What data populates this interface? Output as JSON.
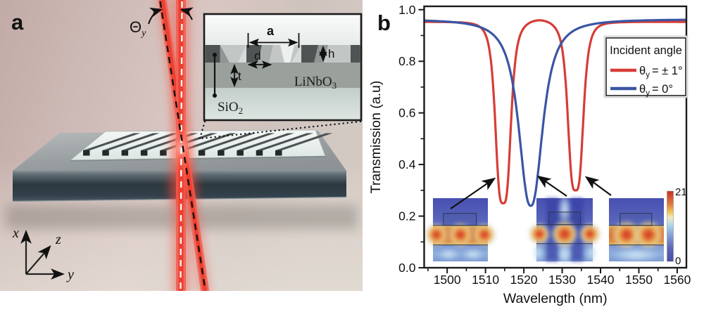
{
  "panels": {
    "a_label": "a",
    "b_label": "b"
  },
  "panel_a": {
    "angle_label": {
      "symbol": "Θ",
      "subscript": "y"
    },
    "coord_axes": {
      "x": "x",
      "z": "z",
      "y": "y"
    },
    "inset": {
      "dim_labels": {
        "a": "a",
        "d": "d",
        "h": "h",
        "t": "t"
      },
      "film_label": {
        "text": "LiNbO",
        "subscript": "3"
      },
      "substrate_label": {
        "text": "SiO",
        "subscript": "2"
      }
    }
  },
  "chart_data": {
    "type": "line",
    "title": "",
    "xlabel": "Wavelength (nm)",
    "ylabel": "Transmission (a.u)",
    "xlim": [
      1494,
      1562.4
    ],
    "ylim": [
      0,
      1.013
    ],
    "x_major_ticks": [
      1500,
      1510,
      1520,
      1530,
      1540,
      1550,
      1560
    ],
    "x_minor_step": 5,
    "y_major_ticks": [
      0,
      0.2,
      0.4,
      0.6,
      0.8,
      1.0
    ],
    "y_tick_labels": [
      "0.0",
      "0.2",
      "0.4",
      "0.6",
      "0.8",
      "1.0"
    ],
    "y_minor_step": 0.1,
    "grid": false,
    "legend": {
      "title": "Incident angle",
      "position": "upper-right",
      "entries": [
        {
          "symbol": "θ",
          "subscript": "y",
          "rest": "= ± 1°",
          "color": "#d63d36"
        },
        {
          "symbol": "θ",
          "subscript": "y",
          "rest": "= 0°",
          "color": "#3a55a4"
        }
      ]
    },
    "series": [
      {
        "name": "theta_y = ±1 deg",
        "color": "#d63d36",
        "baseline": 0.953,
        "bump": {
          "center": 1524,
          "amp": 0.014,
          "sigma": 4.5
        },
        "dips": [
          {
            "center": 1514.6,
            "min": 0.25,
            "width": 2.2,
            "power": 3.5
          },
          {
            "center": 1533.5,
            "min": 0.3,
            "width": 2.2,
            "power": 3.5
          }
        ]
      },
      {
        "name": "theta_y = 0 deg",
        "color": "#3a55a4",
        "baseline": 0.963,
        "dips": [
          {
            "center": 1521.8,
            "min": 0.24,
            "width": 3.6,
            "power": 2.4
          }
        ]
      }
    ],
    "key_points": {
      "red_dip_minima": [
        [
          1514.6,
          0.25
        ],
        [
          1533.5,
          0.3
        ]
      ],
      "blue_dip_minimum": [
        [
          1521.8,
          0.24
        ]
      ],
      "baseline_transmission": 0.96
    },
    "colorbar": {
      "max_label": "21",
      "min_label": "0"
    }
  }
}
